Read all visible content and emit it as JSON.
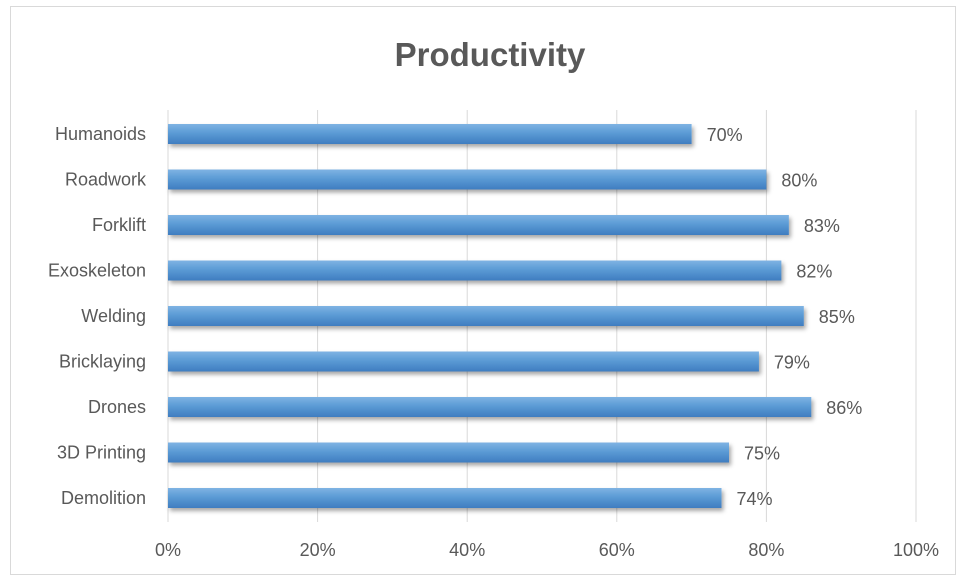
{
  "chart_data": {
    "type": "bar",
    "orientation": "horizontal",
    "title": "Productivity",
    "categories": [
      "Humanoids",
      "Roadwork",
      "Forklift",
      "Exoskeleton",
      "Welding",
      "Bricklaying",
      "Drones",
      "3D Printing",
      "Demolition"
    ],
    "values": [
      70,
      80,
      83,
      82,
      85,
      79,
      86,
      75,
      74
    ],
    "data_labels": [
      "70%",
      "80%",
      "83%",
      "82%",
      "85%",
      "79%",
      "86%",
      "75%",
      "74%"
    ],
    "xlim": [
      0,
      100
    ],
    "x_ticks": [
      0,
      20,
      40,
      60,
      80,
      100
    ],
    "x_tick_labels": [
      "0%",
      "20%",
      "40%",
      "60%",
      "80%",
      "100%"
    ],
    "xlabel": "",
    "ylabel": "",
    "grid": "vertical",
    "legend": "none",
    "bar_color": "#5B9BD5",
    "bar_color_light": "#7FB3E3",
    "bar_color_dark": "#3F7DC0",
    "gridline_color": "#d9d9d9",
    "text_color": "#595959"
  }
}
